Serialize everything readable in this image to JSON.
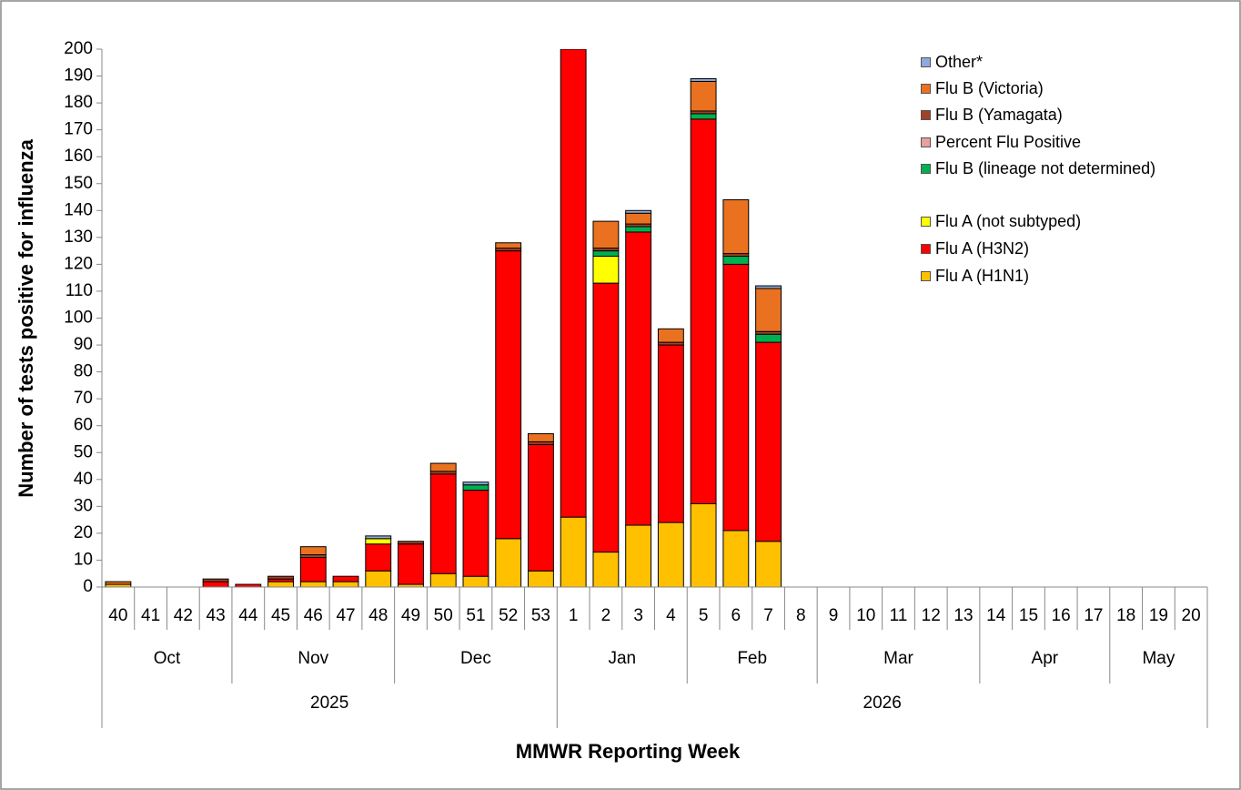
{
  "chart_data": {
    "type": "stacked_bar",
    "y_label": "Number of tests positive for influenza",
    "x_label": "MMWR  Reporting Week",
    "categories": [
      "40",
      "41",
      "42",
      "43",
      "44",
      "45",
      "46",
      "47",
      "48",
      "49",
      "50",
      "51",
      "52",
      "53",
      "1",
      "2",
      "3",
      "4",
      "5",
      "6",
      "7",
      "8",
      "9",
      "10",
      "11",
      "12",
      "13",
      "14",
      "15",
      "16",
      "17",
      "18",
      "19",
      "20"
    ],
    "months": [
      "Oct",
      null,
      null,
      null,
      "Nov",
      null,
      null,
      null,
      null,
      "Dec",
      null,
      null,
      null,
      null,
      "Jan",
      null,
      null,
      null,
      "Feb",
      null,
      null,
      null,
      "Mar",
      null,
      null,
      null,
      null,
      "Apr",
      null,
      null,
      null,
      "May",
      null,
      null
    ],
    "years": [
      "2025",
      null,
      null,
      null,
      null,
      null,
      null,
      null,
      null,
      null,
      null,
      null,
      null,
      null,
      "2026",
      null,
      null,
      null,
      null,
      null,
      null,
      null,
      null,
      null,
      null,
      null,
      null,
      null,
      null,
      null,
      null,
      null,
      null,
      null
    ],
    "ylim": [
      0,
      200
    ],
    "yticks": [
      0,
      10,
      20,
      30,
      40,
      50,
      60,
      70,
      80,
      90,
      100,
      110,
      120,
      130,
      140,
      150,
      160,
      170,
      180,
      190,
      200
    ],
    "series": [
      {
        "name": "Flu A (H1N1)",
        "color": "#FFC000",
        "values": [
          1,
          0,
          0,
          0,
          0,
          2,
          2,
          2,
          6,
          1,
          5,
          4,
          18,
          6,
          26,
          13,
          23,
          24,
          31,
          21,
          17,
          0,
          0,
          0,
          0,
          0,
          0,
          0,
          0,
          0,
          0,
          0,
          0,
          0
        ]
      },
      {
        "name": "Flu A (H3N2)",
        "color": "#FF0000",
        "values": [
          0,
          0,
          0,
          2,
          1,
          1,
          9,
          2,
          10,
          15,
          37,
          32,
          107,
          47,
          174,
          100,
          109,
          66,
          143,
          99,
          74,
          0,
          0,
          0,
          0,
          0,
          0,
          0,
          0,
          0,
          0,
          0,
          0,
          0
        ]
      },
      {
        "name": "Flu A (not subtyped)",
        "color": "#FFFF00",
        "values": [
          0,
          0,
          0,
          0,
          0,
          0,
          0,
          0,
          2,
          0,
          0,
          0,
          0,
          0,
          0,
          10,
          0,
          0,
          0,
          0,
          0,
          0,
          0,
          0,
          0,
          0,
          0,
          0,
          0,
          0,
          0,
          0,
          0,
          0
        ]
      },
      {
        "name": "Flu B (lineage not determined)",
        "color": "#00B050",
        "values": [
          0,
          0,
          0,
          0,
          0,
          0,
          0,
          0,
          0,
          0,
          0,
          2,
          0,
          0,
          0,
          2,
          2,
          0,
          2,
          3,
          3,
          0,
          0,
          0,
          0,
          0,
          0,
          0,
          0,
          0,
          0,
          0,
          0,
          0
        ]
      },
      {
        "name": "Percent Flu Positive",
        "color": "#E6A0A0",
        "values": [
          0,
          0,
          0,
          0,
          0,
          0,
          0,
          0,
          0,
          0,
          0,
          0,
          0,
          0,
          0,
          0,
          0,
          0,
          0,
          0,
          0,
          0,
          0,
          0,
          0,
          0,
          0,
          0,
          0,
          0,
          0,
          0,
          0,
          0
        ]
      },
      {
        "name": "Flu B (Yamagata)",
        "color": "#A0422A",
        "values": [
          0,
          0,
          0,
          1,
          0,
          1,
          1,
          0,
          0,
          1,
          1,
          0,
          1,
          1,
          0,
          1,
          1,
          1,
          1,
          1,
          1,
          0,
          0,
          0,
          0,
          0,
          0,
          0,
          0,
          0,
          0,
          0,
          0,
          0
        ]
      },
      {
        "name": "Flu B (Victoria)",
        "color": "#E97120",
        "values": [
          1,
          0,
          0,
          0,
          0,
          0,
          3,
          0,
          0,
          0,
          3,
          0,
          2,
          3,
          0,
          10,
          4,
          5,
          11,
          20,
          16,
          0,
          0,
          0,
          0,
          0,
          0,
          0,
          0,
          0,
          0,
          0,
          0,
          0
        ]
      },
      {
        "name": "Other*",
        "color": "#8EA9DB",
        "values": [
          0,
          0,
          0,
          0,
          0,
          0,
          0,
          0,
          1,
          0,
          0,
          1,
          0,
          0,
          0,
          0,
          1,
          0,
          1,
          0,
          1,
          0,
          0,
          0,
          0,
          0,
          0,
          0,
          0,
          0,
          0,
          0,
          0,
          0
        ]
      }
    ]
  }
}
